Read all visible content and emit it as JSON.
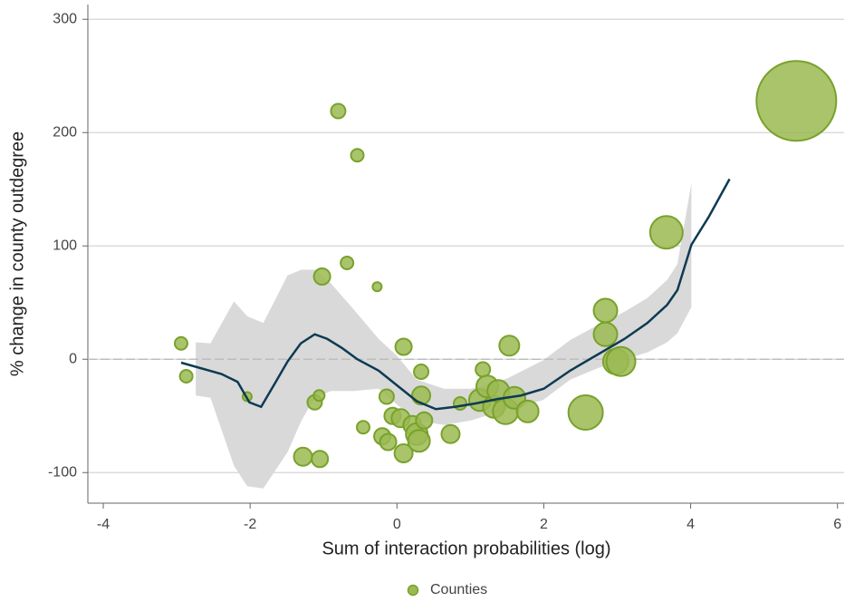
{
  "chart_data": {
    "type": "scatter",
    "x_label": "Sum of interaction probabilities (log)",
    "y_label": "% change in county outdegree",
    "xlim": [
      -4.21,
      6.09
    ],
    "ylim": [
      -127,
      313
    ],
    "xticks": [
      -4,
      -2,
      0,
      2,
      4,
      6
    ],
    "yticks": [
      -100,
      0,
      100,
      200,
      300
    ],
    "grid": true,
    "reference_line": 0,
    "legend": "bottom",
    "series": [
      {
        "name": "Counties",
        "color": "#9bba52",
        "edge_color": "#78a22b",
        "x": [
          -2.94,
          -2.87,
          -2.04,
          -1.28,
          -1.05,
          -1.12,
          -1.06,
          -1.02,
          -0.8,
          -0.54,
          -0.68,
          -0.27,
          -0.46,
          -0.14,
          -0.2,
          -0.12,
          -0.06,
          0.09,
          0.05,
          0.09,
          0.21,
          0.27,
          0.3,
          0.33,
          0.33,
          0.37,
          0.73,
          0.86,
          1.17,
          1.13,
          1.23,
          1.32,
          1.38,
          1.48,
          1.6,
          1.53,
          1.78,
          2.57,
          2.84,
          2.84,
          2.98,
          3.05,
          3.67,
          5.44
        ],
        "values": [
          14,
          -15,
          -33,
          -86,
          -88,
          -38,
          -32,
          73,
          219,
          180,
          85,
          64,
          -60,
          -33,
          -68,
          -73,
          -50,
          11,
          -52,
          -83,
          -58,
          -66,
          -72,
          -32,
          -11,
          -54,
          -66,
          -39,
          -9,
          -36,
          -24,
          -42,
          -28,
          -46,
          -34,
          12,
          -46,
          -47,
          43,
          22,
          -2,
          -2,
          112,
          228
        ],
        "sizes": [
          7,
          7,
          5,
          10,
          9,
          8,
          6,
          9,
          8,
          7,
          7,
          5,
          7,
          8,
          9,
          9,
          9,
          9,
          10,
          10,
          10,
          12,
          12,
          10,
          8,
          9,
          10,
          7,
          8,
          12,
          12,
          12,
          12,
          14,
          12,
          11,
          12,
          19,
          13,
          13,
          14,
          16,
          18,
          44
        ]
      }
    ],
    "fit": {
      "color": "#0e3a52",
      "x": [
        -2.94,
        -2.39,
        -2.17,
        -2.01,
        -1.85,
        -1.66,
        -1.49,
        -1.31,
        -1.12,
        -0.95,
        -0.75,
        -0.54,
        -0.25,
        0,
        0.27,
        0.53,
        0.79,
        1.07,
        1.38,
        1.69,
        2.0,
        2.36,
        2.73,
        3.1,
        3.41,
        3.68,
        3.82,
        4.01,
        4.25,
        4.53
      ],
      "values": [
        -3,
        -13,
        -20,
        -38,
        -42,
        -21,
        -2,
        14,
        22,
        18,
        10,
        0,
        -10,
        -23,
        -37,
        -44,
        -42,
        -39,
        -35,
        -32,
        -26,
        -10,
        4,
        18,
        32,
        48,
        61,
        101,
        126,
        159
      ]
    },
    "band": {
      "color": "#d9d9d9",
      "x": [
        -2.74,
        -2.54,
        -2.22,
        -2.04,
        -1.82,
        -1.49,
        -1.3,
        -1.12,
        -0.9,
        -0.59,
        -0.25,
        0,
        0.27,
        0.64,
        1.01,
        1.5,
        1.99,
        2.36,
        2.73,
        3.1,
        3.41,
        3.68,
        3.82,
        4.01
      ],
      "upper": [
        15,
        14,
        51,
        38,
        32,
        74,
        79,
        79,
        67,
        44,
        18,
        3,
        -18,
        -26,
        -26,
        -17,
        -1,
        17,
        30,
        42,
        54,
        70,
        84,
        155
      ],
      "lower": [
        -32,
        -34,
        -94,
        -112,
        -114,
        -82,
        -54,
        -34,
        -28,
        -28,
        -26,
        -40,
        -54,
        -58,
        -54,
        -44,
        -36,
        -18,
        -8,
        0,
        6,
        15,
        23,
        46
      ]
    }
  }
}
